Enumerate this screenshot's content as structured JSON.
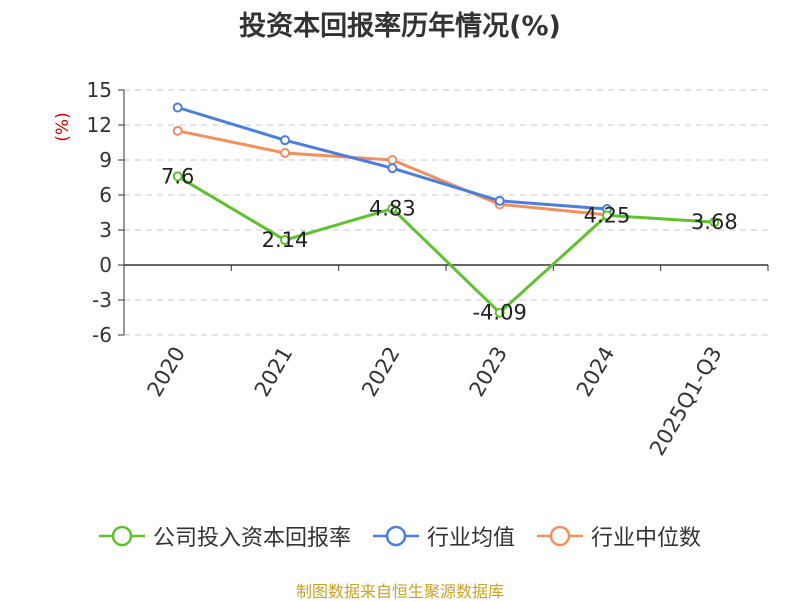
{
  "chart_data": {
    "type": "line",
    "title": "投资本回报率历年情况(%)",
    "ylabel": "(%)",
    "categories": [
      "2020",
      "2021",
      "2022",
      "2023",
      "2024",
      "2025Q1-Q3"
    ],
    "ylim": [
      -6,
      15
    ],
    "yticks": [
      15,
      12,
      9,
      6,
      3,
      0,
      -3,
      -6
    ],
    "grid": true,
    "legend_position": "bottom",
    "series": [
      {
        "name": "公司投入资本回报率",
        "color": "#5ec22f",
        "values": [
          7.6,
          2.14,
          4.83,
          -4.09,
          4.25,
          3.68
        ],
        "labels": [
          "7.6",
          "2.14",
          "4.83",
          "-4.09",
          "4.25",
          "3.68"
        ]
      },
      {
        "name": "行业均值",
        "color": "#4b7fdc",
        "values": [
          13.5,
          10.7,
          8.3,
          5.5,
          4.8,
          null
        ]
      },
      {
        "name": "行业中位数",
        "color": "#f28f5e",
        "values": [
          11.5,
          9.6,
          9.0,
          5.2,
          4.3,
          null
        ]
      }
    ]
  },
  "source": "制图数据来自恒生聚源数据库"
}
